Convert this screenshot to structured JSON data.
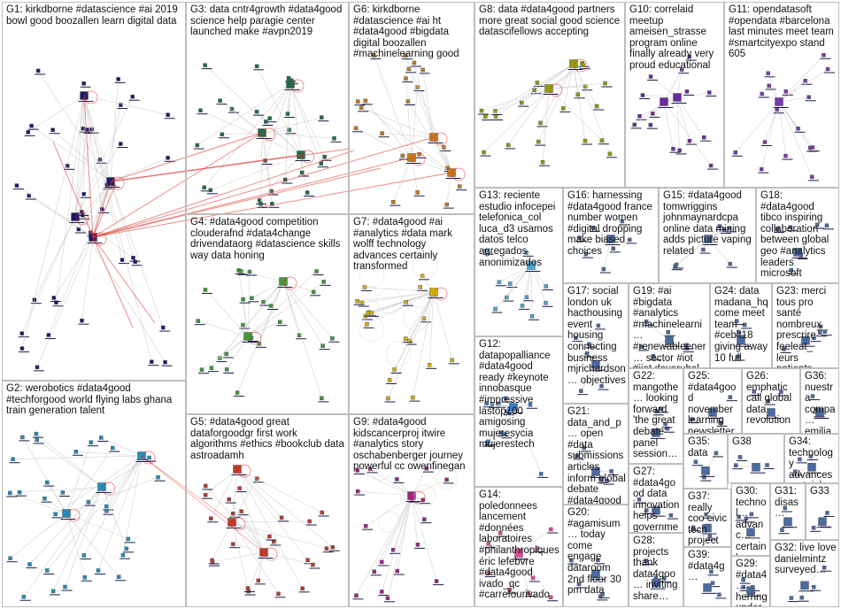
{
  "groups": [
    {
      "id": "G1",
      "text": "G1: kirkdborne #datascience #ai 2019 bowl good boozallen learn digital data"
    },
    {
      "id": "G2",
      "text": "G2: werobotics #data4good #techforgood world flying labs ghana train generation talent"
    },
    {
      "id": "G3",
      "text": "G3: data cntr4growth #data4good science help paragie center launched make #avpn2019"
    },
    {
      "id": "G4",
      "text": "G4: #data4good competition clouderafnd #data4change drivendataorg #datascience skills way data honing"
    },
    {
      "id": "G5",
      "text": "G5: #data4good great dataforgoodgr first work algorithms #ethics #bookclub data astroadamh"
    },
    {
      "id": "G6",
      "text": "G6: kirkdborne #datascience #ai ht #data4good #bigdata digital boozallen #machinelearning good"
    },
    {
      "id": "G7",
      "text": "G7: #data4good #ai #analytics #data mark wolff technology advances certainly transformed"
    },
    {
      "id": "G8",
      "text": "G8: data #data4good partners more great social good science datascifellows accepting"
    },
    {
      "id": "G9",
      "text": "G9: #data4good kidscancerproj itwire #analytics story oschabenberger journey powerful cc owenfinegan"
    },
    {
      "id": "G10",
      "text": "G10: correlaid meetup ameisen_strasse program online finally already very proud educational"
    },
    {
      "id": "G11",
      "text": "G11: opendatasoft #opendata #barcelona last minutes meet team #smartcityexpo stand 605"
    },
    {
      "id": "G12",
      "text": "G12: datapopalliance #data4good ready #keynote innobasque #impressive lastop100 amigosing mujeresycia mujerestech"
    },
    {
      "id": "G13",
      "text": "G13: reciente estudio infocepei telefonica_col luca_d3 usamos datos telco agregados anonimizados"
    },
    {
      "id": "G14",
      "text": "G14: poledonnees lancement #données laboratoires #philanthropiques éric lefebvre #data4good ivado_qc #carrefourivado"
    },
    {
      "id": "G15",
      "text": "G15: #data4good tomwriggins johnmaynardcpa online data mining adds picture vaping related"
    },
    {
      "id": "G16",
      "text": "G16: harnessing #data4good france number women #digital dropping make biased choices"
    },
    {
      "id": "G17",
      "text": "G17: social london uk hacthousing event housing connecting business mjrichardson… objectives"
    },
    {
      "id": "G18",
      "text": "G18: #data4good tibco inspiring collaboration between global geo #analytics leaders microsoft"
    },
    {
      "id": "G19",
      "text": "G19: #ai #bigdata #analytics #machinelearni… #renewableener… sector #iot #iiot daverubal #dro"
    },
    {
      "id": "G20",
      "text": "G20: #agamisum… today come engage dataroom 2nd floor 30 pm data"
    },
    {
      "id": "G21",
      "text": "G21: data_and_p… open #data submissions articles inform global debate #data4good carlos_santi…"
    },
    {
      "id": "G22",
      "text": "G22: mangothe… looking forward 'the great debate' panel session…"
    },
    {
      "id": "G23",
      "text": "G23: merci tous pro santé nombreux prescrire feeleat_ leurs patients…"
    },
    {
      "id": "G24",
      "text": "G24: data madana_hq come meet team #cebit18 giving away 10 full"
    },
    {
      "id": "G25",
      "text": "G25: #data4good november learning newsletter…"
    },
    {
      "id": "G26",
      "text": "G26: emphatic call global data revolution…"
    },
    {
      "id": "G27",
      "text": "G27: #data4good data innovation helps governme…"
    },
    {
      "id": "G28",
      "text": "G28: projects thank data4goo… inviting share…"
    },
    {
      "id": "G29",
      "text": "G29: #data4… herring underw… #iot…"
    },
    {
      "id": "G30",
      "text": "G30: technol… advanc… certainly transfor…"
    },
    {
      "id": "G31",
      "text": "G31: disas…"
    },
    {
      "id": "G32",
      "text": "G32: live love danielmintz surveyed…"
    },
    {
      "id": "G33",
      "text": "G33"
    },
    {
      "id": "G34",
      "text": "G34: technology advances certainly…"
    },
    {
      "id": "G35",
      "text": "G35: data"
    },
    {
      "id": "G36",
      "text": "G36: nuestra compa… emilia garcía…"
    },
    {
      "id": "G37",
      "text": "G37: really coo civic tech project…"
    },
    {
      "id": "G38",
      "text": "G38"
    },
    {
      "id": "G39",
      "text": "G39: #data4g…"
    }
  ],
  "colors": {
    "border": "#bdbdbd",
    "edge": "#c8c8c8",
    "edge_red": "#e0302a",
    "G1": "#1a1a6e",
    "G2": "#1f8fbf",
    "G3": "#1e6b4a",
    "G4": "#3f9a3a",
    "G5": "#c0392b",
    "G6": "#c87a1a",
    "G7": "#d4b000",
    "G8": "#8da000",
    "G9": "#a0208a",
    "G10": "#6a2aa0",
    "G11": "#7a3ab0",
    "G12": "#3a7ad0",
    "G13": "#4aa8d8",
    "G14": "#e04a9a"
  }
}
